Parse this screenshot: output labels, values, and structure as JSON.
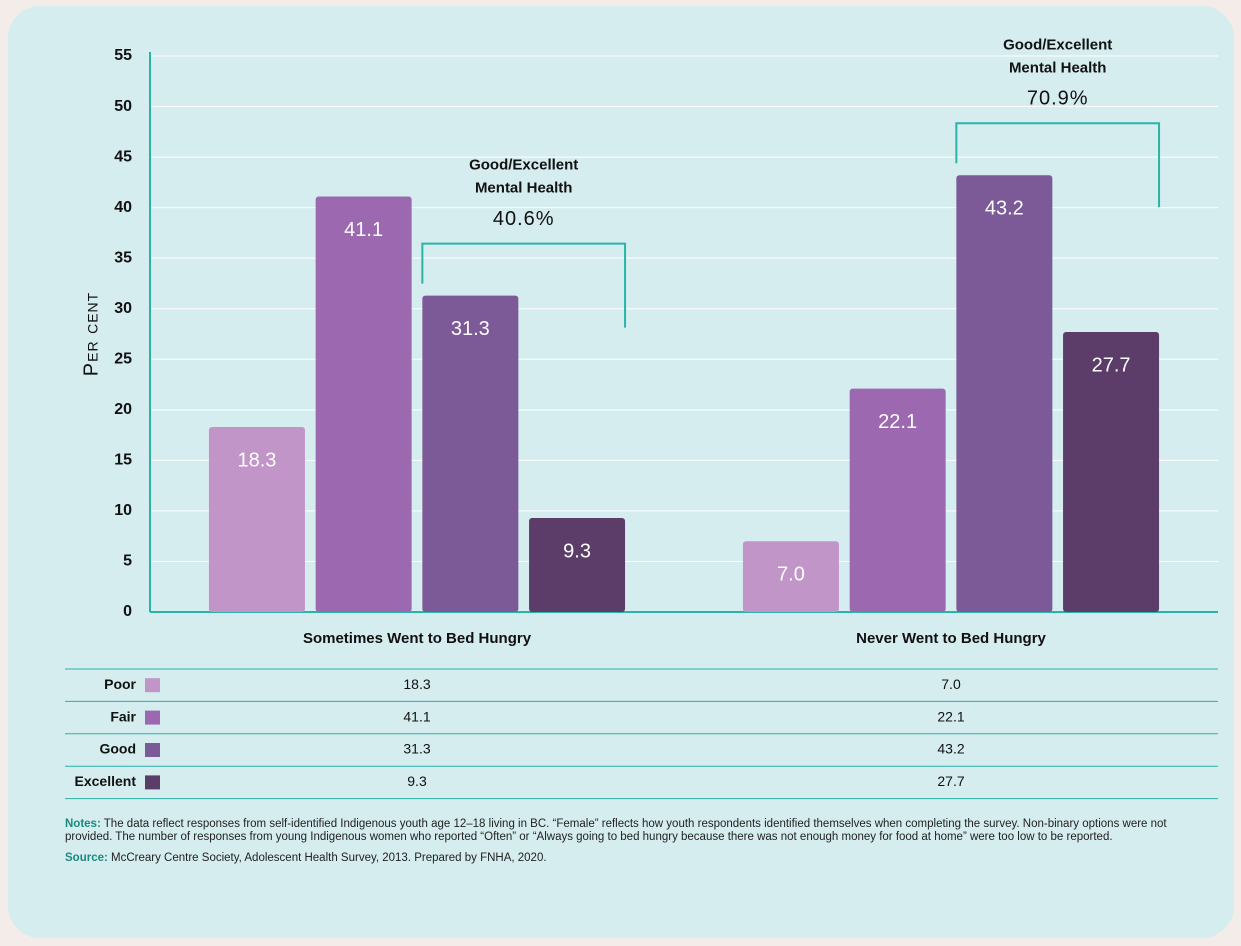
{
  "chart_data": {
    "type": "bar",
    "categories": [
      "Sometimes Went to Bed Hungry",
      "Never Went to Bed Hungry"
    ],
    "series": [
      {
        "name": "Poor",
        "color": "#c195c8",
        "values": [
          18.3,
          7.0
        ],
        "value_labels": [
          "18.3",
          "7.0"
        ]
      },
      {
        "name": "Fair",
        "color": "#9c69b1",
        "values": [
          41.1,
          22.1
        ],
        "value_labels": [
          "41.1",
          "22.1"
        ]
      },
      {
        "name": "Good",
        "color": "#7c5a98",
        "values": [
          31.3,
          43.2
        ],
        "value_labels": [
          "31.3",
          "43.2"
        ]
      },
      {
        "name": "Excellent",
        "color": "#5c3d69",
        "values": [
          9.3,
          27.7
        ],
        "value_labels": [
          "9.3",
          "27.7"
        ]
      }
    ],
    "ylim": [
      0,
      55
    ],
    "yticks": [
      0,
      5,
      10,
      15,
      20,
      25,
      30,
      35,
      40,
      45,
      50,
      55
    ],
    "ylabel": "Per cent",
    "grid": true,
    "annotations": [
      {
        "lines": [
          "Good/Excellent",
          "Mental Health"
        ],
        "label": "40.6%"
      },
      {
        "lines": [
          "Good/Excellent",
          "Mental Health"
        ],
        "label": "70.9%"
      }
    ]
  },
  "notes": {
    "label": "Notes:",
    "text": "The data reflect responses from self-identified Indigenous youth age 12–18 living in BC. “Female” reflects how youth respondents identified themselves when completing the survey. Non-binary options were not provided. The number of responses from young Indigenous women who reported “Often” or “Always going to bed hungry because there was not enough money for food at home” were too low to be reported."
  },
  "source": {
    "label": "Source:",
    "text": "McCreary Centre Society, Adolescent Health Survey, 2013. Prepared by FNHA, 2020."
  }
}
